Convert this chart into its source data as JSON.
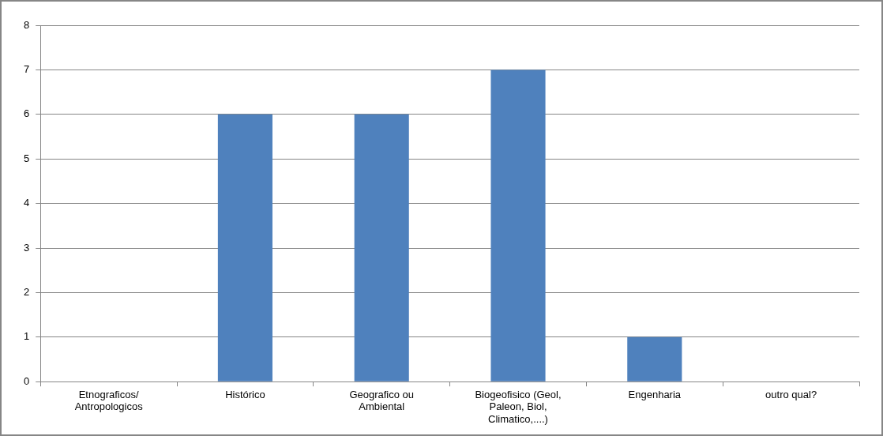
{
  "chart_data": {
    "type": "bar",
    "categories": [
      "Etnograficos/ Antropologicos",
      "Histórico",
      "Geografico ou Ambiental",
      "Biogeofisico (Geol, Paleon, Biol, Climatico,....)",
      "Engenharia",
      "outro qual?"
    ],
    "values": [
      0,
      6,
      6,
      7,
      1,
      0
    ],
    "color": "#4f81bd",
    "ylim": [
      0,
      8
    ],
    "yticks": [
      0,
      1,
      2,
      3,
      4,
      5,
      6,
      7,
      8
    ],
    "grid": "y",
    "legend": false
  }
}
